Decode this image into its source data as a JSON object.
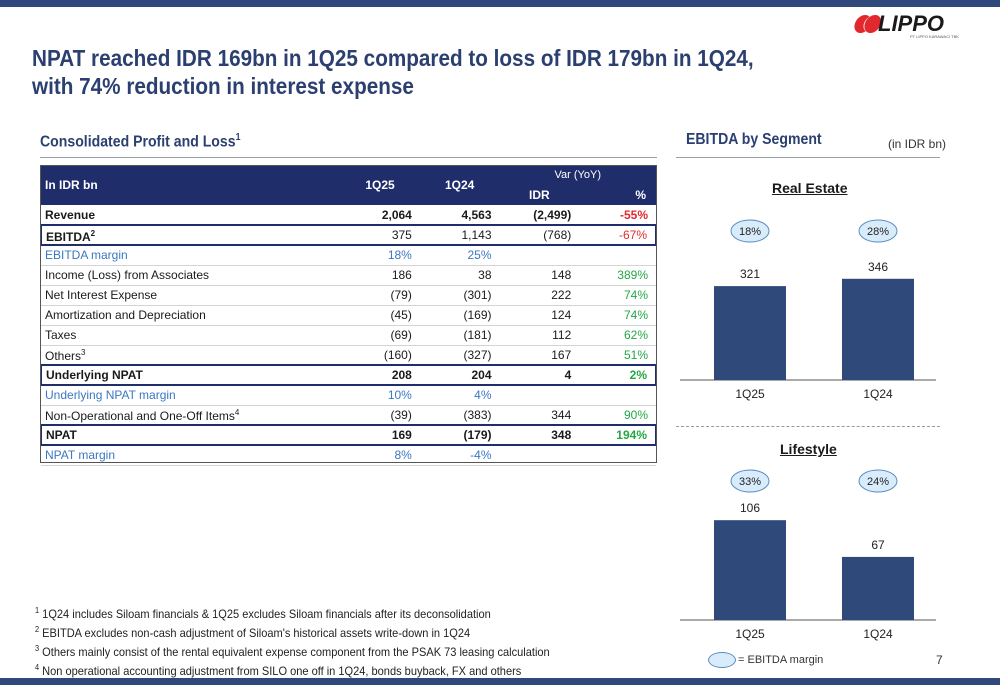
{
  "header": {
    "logo_text": "LIPPO",
    "logo_subtext": "PT LIPPO KARAWACI TBK",
    "title_line1": "NPAT reached IDR 169bn in 1Q25 compared to loss of IDR 179bn in 1Q24,",
    "title_line2": "with 74% reduction in interest expense"
  },
  "pl": {
    "heading": "Consolidated Profit and Loss",
    "heading_sup": "1",
    "columns": {
      "label": "In IDR bn",
      "c1": "1Q25",
      "c2": "1Q24",
      "var": "Var (YoY)",
      "idr": "IDR",
      "pct": "%"
    },
    "rows": [
      {
        "label": "Revenue",
        "sup": "",
        "c1": "2,064",
        "c2": "4,563",
        "idr": "(2,499)",
        "pct": "-55%"
      },
      {
        "label": "EBITDA",
        "sup": "2",
        "c1": "375",
        "c2": "1,143",
        "idr": "(768)",
        "pct": "-67%"
      },
      {
        "label": "EBITDA margin",
        "sup": "",
        "c1": "18%",
        "c2": "25%",
        "idr": "",
        "pct": ""
      },
      {
        "label": "Income (Loss) from Associates",
        "sup": "",
        "c1": "186",
        "c2": "38",
        "idr": "148",
        "pct": "389%"
      },
      {
        "label": "Net Interest Expense",
        "sup": "",
        "c1": "(79)",
        "c2": "(301)",
        "idr": "222",
        "pct": "74%"
      },
      {
        "label": "Amortization and Depreciation",
        "sup": "",
        "c1": "(45)",
        "c2": "(169)",
        "idr": "124",
        "pct": "74%"
      },
      {
        "label": "Taxes",
        "sup": "",
        "c1": "(69)",
        "c2": "(181)",
        "idr": "112",
        "pct": "62%"
      },
      {
        "label": "Others",
        "sup": "3",
        "c1": "(160)",
        "c2": "(327)",
        "idr": "167",
        "pct": "51%"
      },
      {
        "label": "Underlying NPAT",
        "sup": "",
        "c1": "208",
        "c2": "204",
        "idr": "4",
        "pct": "2%"
      },
      {
        "label": "Underlying NPAT margin",
        "sup": "",
        "c1": "10%",
        "c2": "4%",
        "idr": "",
        "pct": ""
      },
      {
        "label": "Non-Operational and One-Off Items",
        "sup": "4",
        "c1": "(39)",
        "c2": "(383)",
        "idr": "344",
        "pct": "90%"
      },
      {
        "label": "NPAT",
        "sup": "",
        "c1": "169",
        "c2": "(179)",
        "idr": "348",
        "pct": "194%"
      },
      {
        "label": "NPAT margin",
        "sup": "",
        "c1": "8%",
        "c2": "-4%",
        "idr": "",
        "pct": ""
      }
    ]
  },
  "footnotes": [
    {
      "num": "1",
      "text": "1Q24 includes Siloam financials & 1Q25 excludes Siloam financials after its deconsolidation"
    },
    {
      "num": "2",
      "text": "EBITDA excludes non-cash adjustment of Siloam's historical assets write-down in 1Q24"
    },
    {
      "num": "3",
      "text": "Others mainly consist of the rental equivalent expense component from the PSAK 73 leasing calculation"
    },
    {
      "num": "4",
      "text": "Non operational accounting adjustment from SILO one off in 1Q24, bonds buyback, FX and others"
    }
  ],
  "ebitda": {
    "heading": "EBITDA by Segment",
    "units": "(in IDR bn)",
    "legend_label": "= EBITDA margin",
    "page_number": "7"
  },
  "colors": {
    "bar": "#2f4a7a",
    "header_navy": "#1f2d6b",
    "title_blue": "#2b4070",
    "margin_blue": "#3a78c2",
    "negative_red": "#e0282e",
    "positive_green": "#22a745",
    "margin_bubble": "#d9ecfb"
  },
  "chart_data": [
    {
      "type": "bar",
      "title": "Real Estate",
      "categories": [
        "1Q25",
        "1Q24"
      ],
      "values": [
        321,
        346
      ],
      "annotations": [
        "18%",
        "28%"
      ],
      "ylim": [
        0,
        400
      ]
    },
    {
      "type": "bar",
      "title": "Lifestyle",
      "categories": [
        "1Q25",
        "1Q24"
      ],
      "values": [
        106,
        67
      ],
      "annotations": [
        "33%",
        "24%"
      ],
      "ylim": [
        0,
        120
      ]
    }
  ]
}
